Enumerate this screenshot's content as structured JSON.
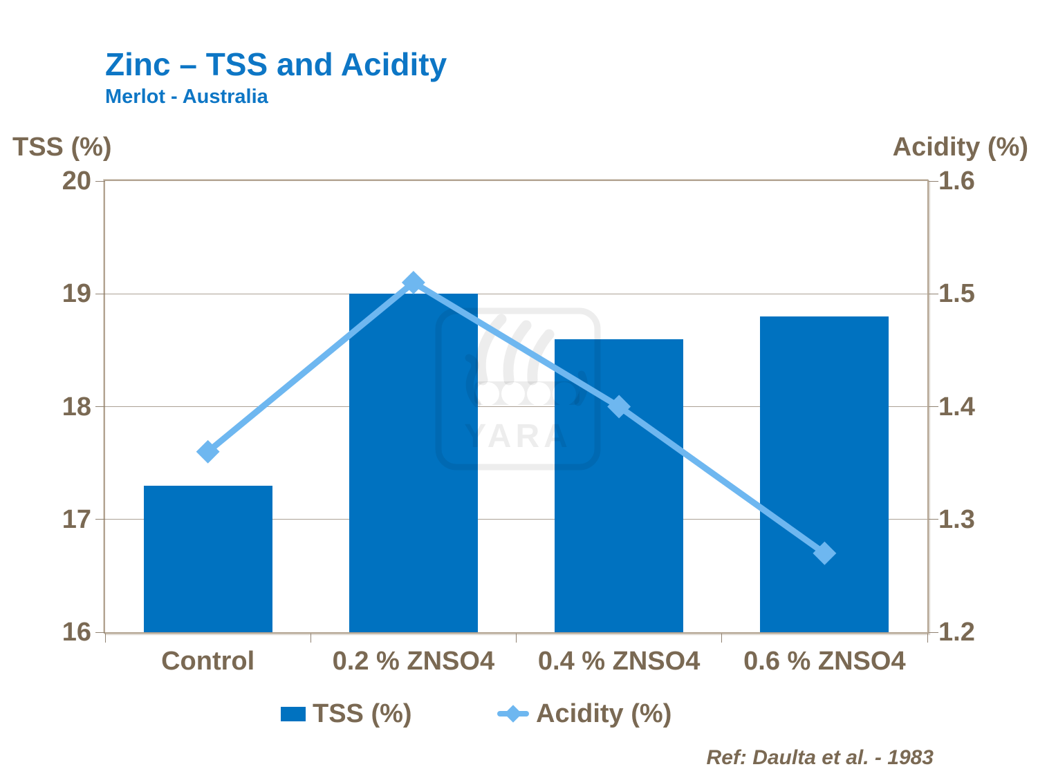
{
  "header": {
    "title": "Zinc – TSS and Acidity",
    "subtitle": "Merlot - Australia"
  },
  "footer": {
    "reference": "Ref: Daulta et al. - 1983"
  },
  "watermark": {
    "text": "YARA"
  },
  "legend": {
    "items": [
      {
        "label": "TSS (%)",
        "marker": "blue-square"
      },
      {
        "label": "Acidity (%)",
        "marker": "lightblue-line-diamond"
      }
    ]
  },
  "colors": {
    "title_blue": "#0D76C5",
    "bar_blue": "#0072C0",
    "line_blue": "#6EB7F0",
    "text_brown": "#7A6953",
    "axis_brown": "#8F8171",
    "plot_border_tan": "#B3A492"
  },
  "chart_data": {
    "type": "bar+line",
    "title": "Zinc – TSS and Acidity",
    "subtitle": "Merlot - Australia",
    "categories": [
      "Control",
      "0.2 % ZNSO4",
      "0.4 % ZNSO4",
      "0.6 % ZNSO4"
    ],
    "series": [
      {
        "name": "TSS (%)",
        "type": "bar",
        "axis": "left",
        "color": "#0072C0",
        "values": [
          17.3,
          19.0,
          18.6,
          18.8
        ]
      },
      {
        "name": "Acidity (%)",
        "type": "line",
        "axis": "right",
        "color": "#6EB7F0",
        "marker": "diamond",
        "values": [
          1.36,
          1.51,
          1.4,
          1.27
        ]
      }
    ],
    "left_axis": {
      "title": "TSS (%)",
      "min": 16,
      "max": 20,
      "step": 1,
      "tick_labels": [
        "20",
        "19",
        "18",
        "17",
        "16"
      ]
    },
    "right_axis": {
      "title": "Acidity (%)",
      "min": 1.2,
      "max": 1.6,
      "step": 0.1,
      "tick_labels": [
        "1.6",
        "1.5",
        "1.4",
        "1.3",
        "1.2"
      ]
    },
    "grid": "horizontal-only",
    "legend_position": "bottom"
  }
}
